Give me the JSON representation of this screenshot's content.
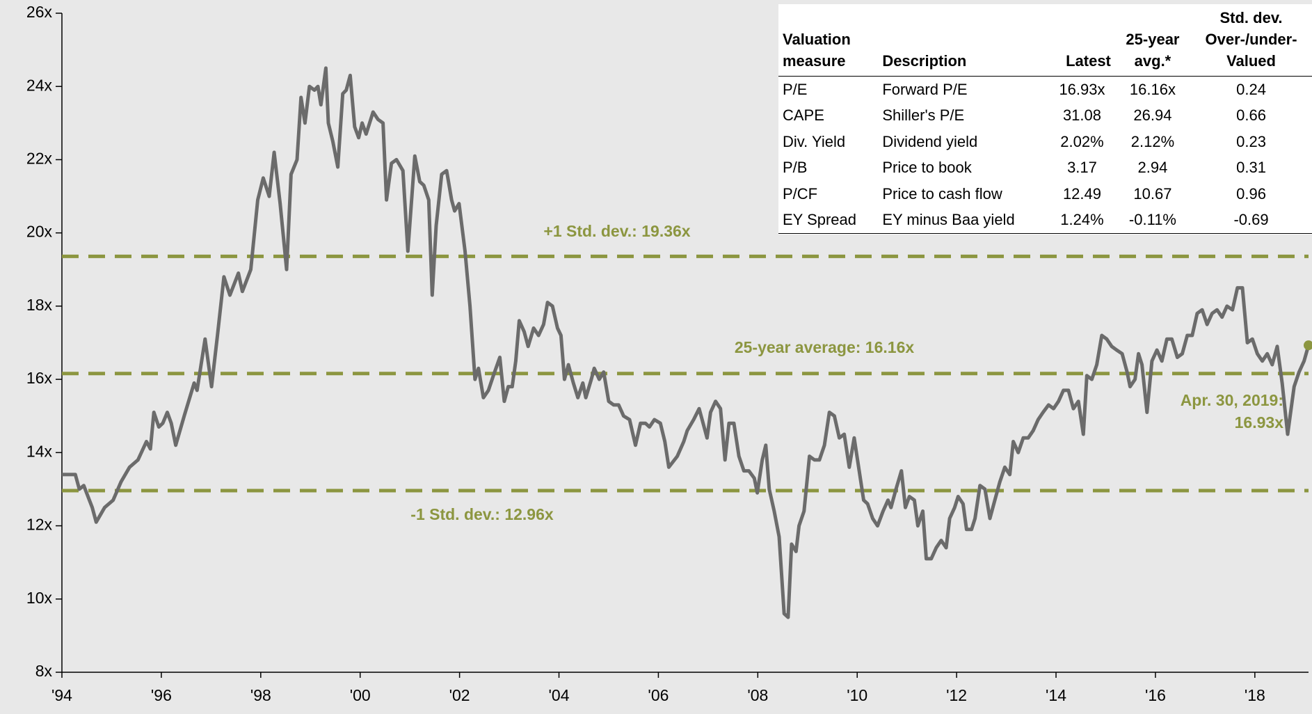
{
  "chart_data": {
    "type": "line",
    "color": "#6b6b6b",
    "x": [
      1994.0,
      1994.27,
      1994.35,
      1994.44,
      1994.61,
      1994.69,
      1994.86,
      1995.03,
      1995.19,
      1995.36,
      1995.53,
      1995.7,
      1995.78,
      1995.85,
      1995.95,
      1996.03,
      1996.12,
      1996.2,
      1996.29,
      1996.46,
      1996.66,
      1996.72,
      1996.88,
      1997.01,
      1997.13,
      1997.26,
      1997.38,
      1997.55,
      1997.63,
      1997.8,
      1997.94,
      1998.05,
      1998.17,
      1998.27,
      1998.39,
      1998.52,
      1998.61,
      1998.73,
      1998.81,
      1998.89,
      1998.98,
      1999.08,
      1999.15,
      1999.21,
      1999.31,
      1999.36,
      1999.45,
      1999.55,
      1999.65,
      1999.72,
      1999.8,
      1999.89,
      1999.97,
      2000.04,
      2000.12,
      2000.26,
      2000.36,
      2000.46,
      2000.53,
      2000.63,
      2000.73,
      2000.86,
      2000.96,
      2001.1,
      2001.2,
      2001.28,
      2001.38,
      2001.45,
      2001.53,
      2001.64,
      2001.74,
      2001.84,
      2001.9,
      2001.99,
      2002.11,
      2002.21,
      2002.31,
      2002.38,
      2002.48,
      2002.58,
      2002.68,
      2002.81,
      2002.9,
      2002.98,
      2003.06,
      2003.13,
      2003.2,
      2003.3,
      2003.38,
      2003.49,
      2003.59,
      2003.69,
      2003.77,
      2003.87,
      2003.97,
      2004.04,
      2004.11,
      2004.19,
      2004.29,
      2004.38,
      2004.48,
      2004.54,
      2004.65,
      2004.71,
      2004.81,
      2004.9,
      2005.0,
      2005.1,
      2005.2,
      2005.3,
      2005.42,
      2005.54,
      2005.64,
      2005.74,
      2005.82,
      2005.92,
      2006.04,
      2006.13,
      2006.21,
      2006.38,
      2006.51,
      2006.58,
      2006.71,
      2006.82,
      2006.88,
      2006.98,
      2007.05,
      2007.15,
      2007.25,
      2007.34,
      2007.42,
      2007.52,
      2007.62,
      2007.72,
      2007.82,
      2007.93,
      2007.99,
      2008.09,
      2008.16,
      2008.23,
      2008.33,
      2008.43,
      2008.53,
      2008.61,
      2008.68,
      2008.77,
      2008.83,
      2008.93,
      2009.04,
      2009.14,
      2009.24,
      2009.34,
      2009.44,
      2009.54,
      2009.64,
      2009.74,
      2009.84,
      2009.94,
      2010.04,
      2010.13,
      2010.21,
      2010.31,
      2010.41,
      2010.52,
      2010.62,
      2010.68,
      2010.78,
      2010.89,
      2010.97,
      2011.05,
      2011.15,
      2011.22,
      2011.32,
      2011.39,
      2011.49,
      2011.59,
      2011.69,
      2011.79,
      2011.86,
      2011.96,
      2012.03,
      2012.13,
      2012.2,
      2012.3,
      2012.37,
      2012.47,
      2012.57,
      2012.67,
      2012.77,
      2012.87,
      2012.97,
      2013.07,
      2013.14,
      2013.24,
      2013.34,
      2013.44,
      2013.54,
      2013.64,
      2013.74,
      2013.85,
      2013.95,
      2014.05,
      2014.15,
      2014.25,
      2014.35,
      2014.45,
      2014.55,
      2014.62,
      2014.72,
      2014.82,
      2014.92,
      2015.02,
      2015.12,
      2015.22,
      2015.33,
      2015.43,
      2015.49,
      2015.59,
      2015.66,
      2015.73,
      2015.83,
      2015.93,
      2016.03,
      2016.13,
      2016.23,
      2016.33,
      2016.44,
      2016.54,
      2016.64,
      2016.74,
      2016.84,
      2016.94,
      2017.04,
      2017.14,
      2017.24,
      2017.34,
      2017.44,
      2017.55,
      2017.65,
      2017.75,
      2017.85,
      2017.95,
      2018.05,
      2018.15,
      2018.25,
      2018.35,
      2018.45,
      2018.55,
      2018.66,
      2018.79,
      2018.89,
      2018.99,
      2019.08
    ],
    "values": [
      13.4,
      13.4,
      13.0,
      13.1,
      12.5,
      12.1,
      12.5,
      12.7,
      13.2,
      13.6,
      13.8,
      14.3,
      14.1,
      15.1,
      14.7,
      14.8,
      15.1,
      14.8,
      14.2,
      15.0,
      15.9,
      15.7,
      17.1,
      15.8,
      17.2,
      18.8,
      18.3,
      18.9,
      18.4,
      19.0,
      20.9,
      21.5,
      21.0,
      22.2,
      20.8,
      19.0,
      21.6,
      22.0,
      23.7,
      23.0,
      24.0,
      23.9,
      24.0,
      23.5,
      24.5,
      23.0,
      22.5,
      21.8,
      23.8,
      23.9,
      24.3,
      22.9,
      22.6,
      23.0,
      22.7,
      23.3,
      23.1,
      23.0,
      20.9,
      21.9,
      22.0,
      21.7,
      19.5,
      22.1,
      21.4,
      21.3,
      20.9,
      18.3,
      20.2,
      21.6,
      21.7,
      20.9,
      20.6,
      20.8,
      19.5,
      18.0,
      16.0,
      16.3,
      15.5,
      15.7,
      16.1,
      16.6,
      15.4,
      15.8,
      15.8,
      16.5,
      17.6,
      17.3,
      16.9,
      17.4,
      17.2,
      17.5,
      18.1,
      18.0,
      17.4,
      17.2,
      16.0,
      16.4,
      15.9,
      15.5,
      15.9,
      15.5,
      16.0,
      16.3,
      16.0,
      16.2,
      15.4,
      15.3,
      15.3,
      15.0,
      14.9,
      14.2,
      14.8,
      14.8,
      14.7,
      14.9,
      14.8,
      14.3,
      13.6,
      13.9,
      14.3,
      14.6,
      14.9,
      15.2,
      14.9,
      14.4,
      15.1,
      15.4,
      15.2,
      13.8,
      14.8,
      14.8,
      13.9,
      13.5,
      13.5,
      13.3,
      12.9,
      13.8,
      14.2,
      13.0,
      12.4,
      11.7,
      9.6,
      9.5,
      11.5,
      11.3,
      12.0,
      12.4,
      13.9,
      13.8,
      13.8,
      14.2,
      15.1,
      15.0,
      14.4,
      14.5,
      13.6,
      14.4,
      13.5,
      12.7,
      12.6,
      12.2,
      12.0,
      12.4,
      12.7,
      12.5,
      13.0,
      13.5,
      12.5,
      12.8,
      12.7,
      12.0,
      12.4,
      11.1,
      11.1,
      11.4,
      11.6,
      11.4,
      12.2,
      12.5,
      12.8,
      12.6,
      11.9,
      11.9,
      12.2,
      13.1,
      13.0,
      12.2,
      12.7,
      13.2,
      13.6,
      13.4,
      14.3,
      14.0,
      14.4,
      14.4,
      14.6,
      14.9,
      15.1,
      15.3,
      15.2,
      15.4,
      15.7,
      15.7,
      15.2,
      15.4,
      14.5,
      16.1,
      16.0,
      16.4,
      17.2,
      17.1,
      16.9,
      16.8,
      16.7,
      16.2,
      15.8,
      16.0,
      16.7,
      16.4,
      15.1,
      16.5,
      16.8,
      16.5,
      17.1,
      17.1,
      16.6,
      16.7,
      17.2,
      17.2,
      17.8,
      17.9,
      17.5,
      17.8,
      17.9,
      17.7,
      18.0,
      17.9,
      18.5,
      18.5,
      17.0,
      17.1,
      16.7,
      16.5,
      16.7,
      16.4,
      16.9,
      15.9,
      14.5,
      15.8,
      16.2,
      16.5,
      16.93
    ],
    "xlim": [
      1994,
      2019.08
    ],
    "xticks": [
      {
        "value": 1994,
        "label": "'94"
      },
      {
        "value": 1996,
        "label": "'96"
      },
      {
        "value": 1998,
        "label": "'98"
      },
      {
        "value": 2000,
        "label": "'00"
      },
      {
        "value": 2002,
        "label": "'02"
      },
      {
        "value": 2004,
        "label": "'04"
      },
      {
        "value": 2006,
        "label": "'06"
      },
      {
        "value": 2008,
        "label": "'08"
      },
      {
        "value": 2010,
        "label": "'10"
      },
      {
        "value": 2012,
        "label": "'12"
      },
      {
        "value": 2014,
        "label": "'14"
      },
      {
        "value": 2016,
        "label": "'16"
      },
      {
        "value": 2018,
        "label": "'18"
      }
    ],
    "ylim": [
      8,
      26
    ],
    "yticks": [
      {
        "value": 8,
        "label": "8x"
      },
      {
        "value": 10,
        "label": "10x"
      },
      {
        "value": 12,
        "label": "12x"
      },
      {
        "value": 14,
        "label": "14x"
      },
      {
        "value": 16,
        "label": "16x"
      },
      {
        "value": 18,
        "label": "18x"
      },
      {
        "value": 20,
        "label": "20x"
      },
      {
        "value": 22,
        "label": "22x"
      },
      {
        "value": 24,
        "label": "24x"
      },
      {
        "value": 26,
        "label": "26x"
      }
    ],
    "reference_lines": [
      {
        "value": 19.36,
        "label": "+1 Std. dev.: 19.36x",
        "color": "#8c9640"
      },
      {
        "value": 16.16,
        "label": "25-year average: 16.16x",
        "color": "#8c9640"
      },
      {
        "value": 12.96,
        "label": "-1 Std. dev.: 12.96x",
        "color": "#8c9640"
      }
    ],
    "end_label": [
      "Apr. 30, 2019:",
      "16.93x"
    ],
    "end_marker_color": "#8c9640"
  },
  "table": {
    "header": [
      [
        "Valuation",
        "measure"
      ],
      [
        "Description"
      ],
      [
        "Latest"
      ],
      [
        "25-year",
        "avg.*"
      ],
      [
        "Std. dev.",
        "Over-/under-",
        "Valued"
      ]
    ],
    "rows": [
      [
        "P/E",
        "Forward P/E",
        "16.93x",
        "16.16x",
        "0.24"
      ],
      [
        "CAPE",
        "Shiller's P/E",
        "31.08",
        "26.94",
        "0.66"
      ],
      [
        "Div. Yield",
        "Dividend yield",
        "2.02%",
        "2.12%",
        "0.23"
      ],
      [
        "P/B",
        "Price to book",
        "3.17",
        "2.94",
        "0.31"
      ],
      [
        "P/CF",
        "Price to cash flow",
        "12.49",
        "10.67",
        "0.96"
      ],
      [
        "EY Spread",
        "EY minus Baa yield",
        "1.24%",
        "-0.11%",
        "-0.69"
      ]
    ]
  }
}
